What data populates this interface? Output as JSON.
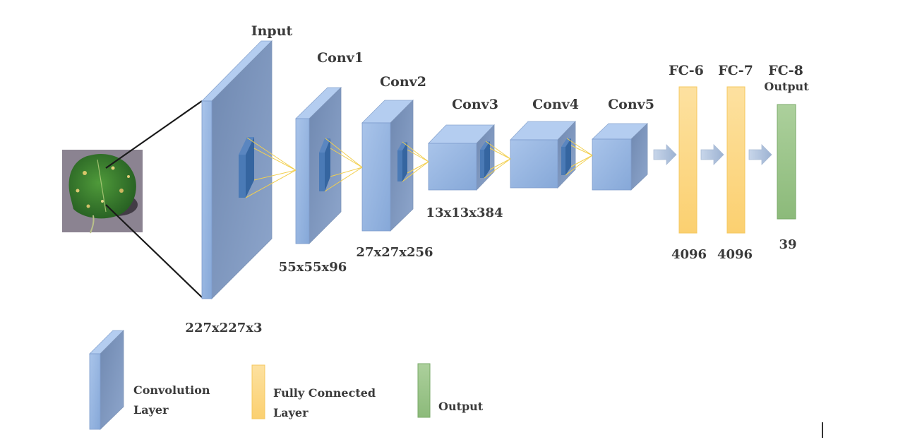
{
  "layers": {
    "input": {
      "label": "Input",
      "dims": "227x227x3"
    },
    "conv1": {
      "label": "Conv1",
      "dims": "55x55x96"
    },
    "conv2": {
      "label": "Conv2",
      "dims": "27x27x256"
    },
    "conv3": {
      "label": "Conv3",
      "dims": "13x13x384"
    },
    "conv4": {
      "label": "Conv4",
      "dims": ""
    },
    "conv5": {
      "label": "Conv5",
      "dims": ""
    },
    "fc6": {
      "label": "FC-6",
      "dims": "4096"
    },
    "fc7": {
      "label": "FC-7",
      "dims": "4096"
    },
    "fc8": {
      "label": "FC-8",
      "sublabel": "Output",
      "dims": "39"
    }
  },
  "legend": {
    "conv_line1": "Convolution",
    "conv_line2": "Layer",
    "fc_line1": "Fully Connected",
    "fc_line2": "Layer",
    "output": "Output"
  },
  "colors": {
    "conv_front": "#94b4e0",
    "conv_side": "#7d94b8",
    "conv_top": "#b4cdf0",
    "kernel": "#3c6ea8",
    "fc": "#fdd98a",
    "output": "#9cc48c",
    "connector": "#f2cf4e"
  }
}
